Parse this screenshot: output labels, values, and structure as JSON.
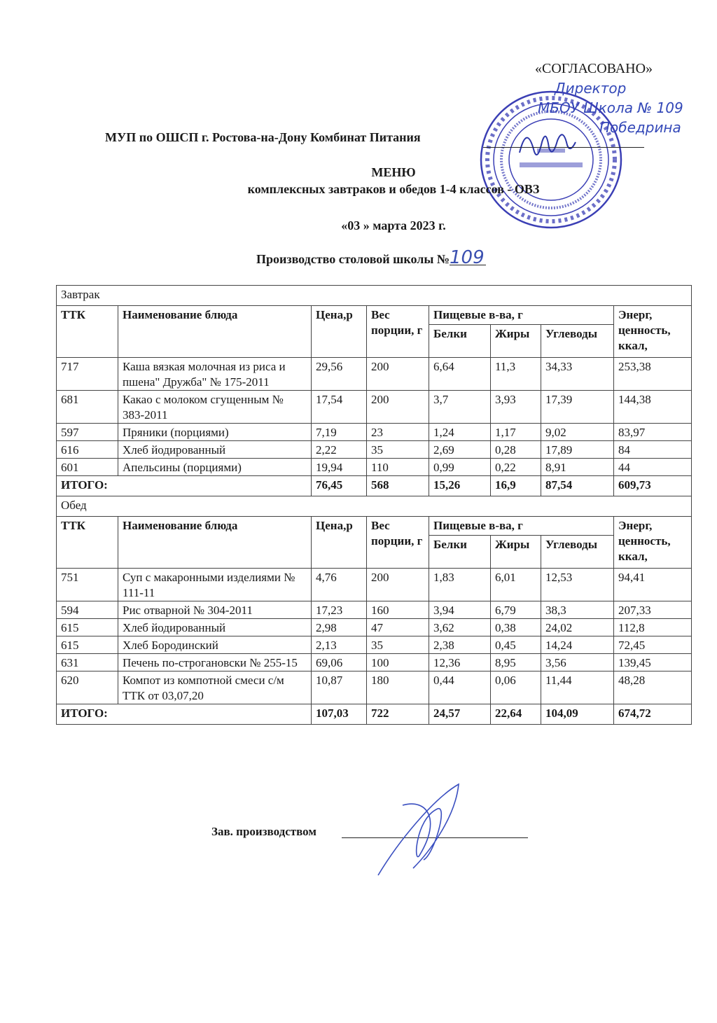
{
  "header": {
    "approved": "«СОГЛАСОВАНО»",
    "approver_handwriting": [
      "Директор",
      "МБОУ Школа № 109",
      "Победрина"
    ],
    "organization": "МУП по ОШСП г. Ростова-на-Дону Комбинат Питания",
    "title": "МЕНЮ",
    "subtitle": "комплексных завтраков и обедов 1-4 классов - ОВЗ",
    "date": "«03 » марта  2023 г.",
    "production_label": "Производство столовой школы №",
    "school_number": "109"
  },
  "stamp": {
    "color": "#3b3fb5",
    "outer_text": "Управление образования города Ростова-на-Дону",
    "inner_text": "Муниципальное бюджетное общеобразовательное учреждение города Ростова-на-Дону «Школа № 109» ОГРН 1026104027311 ИНН 6161017119 ОКПО 48535560",
    "center": [
      "МБОУ",
      "«Школа № 109»"
    ]
  },
  "columns": {
    "ttk": "ТТК",
    "name": "Наименование блюда",
    "price": "Цена,р",
    "weight": "Вес порции, г",
    "nutrients": "Пищевые в-ва, г",
    "protein": "Белки",
    "fat": "Жиры",
    "carbs": "Углеводы",
    "energy": "Энерг, ценность, ккал,"
  },
  "sections": [
    {
      "title": "Завтрак",
      "rows": [
        [
          "717",
          "Каша вязкая молочная из риса и пшена\" Дружба\" № 175-2011",
          "29,56",
          "200",
          "6,64",
          "11,3",
          "34,33",
          "253,38"
        ],
        [
          "681",
          "Какао с молоком сгущенным № 383-2011",
          "17,54",
          "200",
          "3,7",
          "3,93",
          "17,39",
          "144,38"
        ],
        [
          "597",
          "Пряники (порциями)",
          "7,19",
          "23",
          "1,24",
          "1,17",
          "9,02",
          "83,97"
        ],
        [
          "616",
          "Хлеб йодированный",
          "2,22",
          "35",
          "2,69",
          "0,28",
          "17,89",
          "84"
        ],
        [
          "601",
          "Апельсины (порциями)",
          "19,94",
          "110",
          "0,99",
          "0,22",
          "8,91",
          "44"
        ]
      ],
      "total": [
        "ИТОГО:",
        "76,45",
        "568",
        "15,26",
        "16,9",
        "87,54",
        "609,73"
      ]
    },
    {
      "title": "Обед",
      "rows": [
        [
          "751",
          "Суп с макаронными изделиями № 111-11",
          "4,76",
          "200",
          "1,83",
          "6,01",
          "12,53",
          "94,41"
        ],
        [
          "594",
          "Рис отварной № 304-2011",
          "17,23",
          "160",
          "3,94",
          "6,79",
          "38,3",
          "207,33"
        ],
        [
          "615",
          "Хлеб йодированный",
          "2,98",
          "47",
          "3,62",
          "0,38",
          "24,02",
          "112,8"
        ],
        [
          "615",
          "Хлеб Бородинский",
          "2,13",
          "35",
          "2,38",
          "0,45",
          "14,24",
          "72,45"
        ],
        [
          "631",
          "Печень по-строгановски № 255-15",
          "69,06",
          "100",
          "12,36",
          "8,95",
          "3,56",
          "139,45"
        ],
        [
          "620",
          "Компот из компотной смеси с/м ТТК от 03,07,20",
          "10,87",
          "180",
          "0,44",
          "0,06",
          "11,44",
          "48,28"
        ]
      ],
      "total": [
        "ИТОГО:",
        "107,03",
        "722",
        "24,57",
        "22,64",
        "104,09",
        "674,72"
      ]
    }
  ],
  "footer": {
    "signature_label": "Зав. производством"
  }
}
